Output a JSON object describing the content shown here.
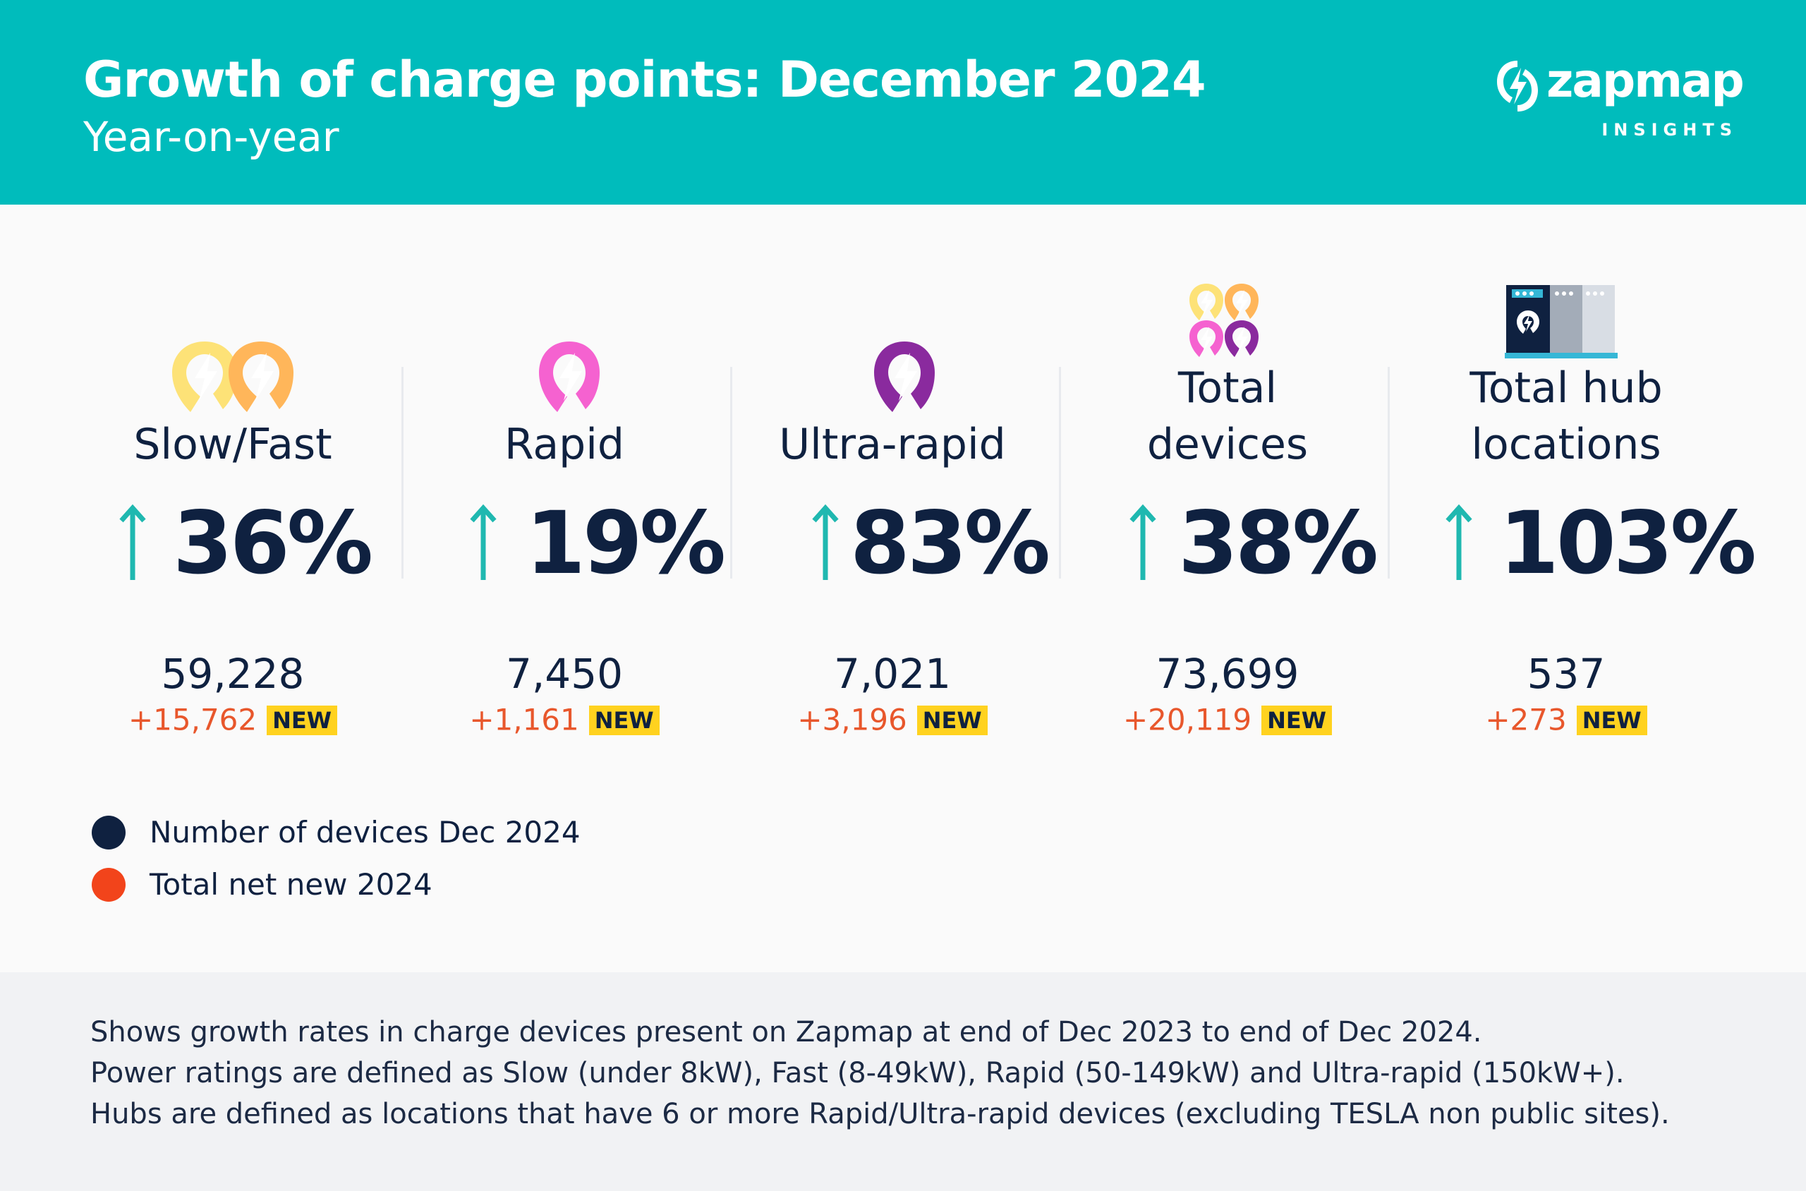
{
  "header": {
    "title": "Growth of charge points: December 2024",
    "subtitle": "Year-on-year"
  },
  "logo": {
    "name": "zapmap",
    "tagline": "INSIGHTS"
  },
  "categories": [
    {
      "label": "Slow/Fast",
      "growth": "36%",
      "count": "59,228",
      "added": "+15,762",
      "badge": "NEW",
      "icon": "slow-fast-charge-icon"
    },
    {
      "label": "Rapid",
      "growth": "19%",
      "count": "7,450",
      "added": "+1,161",
      "badge": "NEW",
      "icon": "rapid-charge-icon"
    },
    {
      "label": "Ultra-rapid",
      "growth": "83%",
      "count": "7,021",
      "added": "+3,196",
      "badge": "NEW",
      "icon": "ultra-rapid-charge-icon"
    },
    {
      "label_line1": "Total",
      "label_line2": "devices",
      "growth": "38%",
      "count": "73,699",
      "added": "+20,119",
      "badge": "NEW",
      "icon": "total-devices-icon"
    },
    {
      "label_line1": "Total hub",
      "label_line2": "locations",
      "growth": "103%",
      "count": "537",
      "added": "+273",
      "badge": "NEW",
      "icon": "charging-hub-icon"
    }
  ],
  "legend": [
    {
      "label": "Number of devices Dec 2024",
      "color": "#0f2140"
    },
    {
      "label": "Total net new 2024",
      "color": "#f2441b"
    }
  ],
  "footnotes": [
    "Shows growth rates in charge devices present on Zapmap at end of Dec 2023 to end of Dec 2024.",
    "Power ratings are defined as Slow (under 8kW), Fast (8-49kW), Rapid (50-149kW) and Ultra-rapid (150kW+).",
    "Hubs are defined as locations that have 6 or more Rapid/Ultra-rapid devices (excluding TESLA non public sites)."
  ],
  "colors": {
    "header": "#00bcbc",
    "accent_arrow": "#1fb8b0",
    "text": "#0f2140",
    "added": "#e8572c",
    "badge": "#ffd21f"
  }
}
